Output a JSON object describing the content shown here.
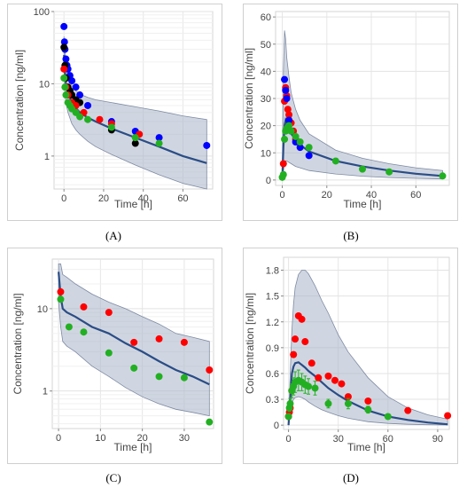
{
  "panels": [
    {
      "id": "A",
      "tag": "(A)"
    },
    {
      "id": "B",
      "tag": "(B)"
    },
    {
      "id": "C",
      "tag": "(C)"
    },
    {
      "id": "D",
      "tag": "(D)"
    }
  ],
  "chart_data": [
    {
      "panel": "(A)",
      "type": "scatter",
      "yscale": "log",
      "xlabel": "Time [h]",
      "ylabel": "Concentration [ng/ml]",
      "xlim": [
        -5,
        75
      ],
      "ylim": [
        0.35,
        100
      ],
      "xticks": [
        0,
        20,
        40,
        60
      ],
      "yticks": [
        1,
        10,
        100
      ],
      "grid": true,
      "legend": "none",
      "prediction": {
        "x": [
          0,
          0.5,
          1,
          2,
          4,
          6,
          8,
          12,
          16,
          24,
          36,
          48,
          60,
          72
        ],
        "y": [
          25,
          15,
          10,
          7.5,
          5.5,
          4.6,
          4.0,
          3.4,
          3.0,
          2.4,
          1.8,
          1.35,
          1.0,
          0.8
        ],
        "lower": [
          14,
          8,
          5.5,
          4.0,
          2.8,
          2.3,
          2.0,
          1.6,
          1.35,
          1.05,
          0.75,
          0.55,
          0.42,
          0.35
        ],
        "upper": [
          45,
          28,
          18,
          12.5,
          9.5,
          8.0,
          7.2,
          6.5,
          6.0,
          5.5,
          4.8,
          4.2,
          3.6,
          3.2
        ]
      },
      "series": [
        {
          "color": "#0000ff",
          "x": [
            0,
            0.25,
            0.5,
            1,
            1.5,
            2,
            3,
            4,
            6,
            8,
            12,
            24,
            36,
            48,
            72
          ],
          "y": [
            62,
            38,
            30,
            22,
            18,
            16,
            13,
            11,
            9,
            7,
            5,
            3,
            2.2,
            1.8,
            1.4
          ]
        },
        {
          "color": "#000000",
          "x": [
            0,
            0.5,
            1,
            2,
            3,
            4,
            6,
            8,
            24,
            36
          ],
          "y": [
            32,
            18,
            12,
            9,
            8,
            7,
            6,
            5.5,
            2.3,
            1.5
          ]
        },
        {
          "color": "#ff0000",
          "x": [
            0,
            1,
            2,
            4,
            6,
            10,
            18,
            24,
            38
          ],
          "y": [
            16,
            9,
            7,
            5.5,
            5,
            4,
            3.2,
            2.8,
            2.0
          ]
        },
        {
          "color": "#22b022",
          "x": [
            0,
            0.5,
            1,
            2,
            3,
            4,
            6,
            8,
            12,
            24,
            36,
            48
          ],
          "y": [
            12,
            9,
            7,
            5.5,
            5,
            4.5,
            4,
            3.5,
            3.2,
            2.5,
            1.8,
            1.5
          ]
        }
      ]
    },
    {
      "panel": "(B)",
      "type": "scatter",
      "xlabel": "Time [h]",
      "ylabel": "Concentration [ng/ml]",
      "xlim": [
        -3,
        75
      ],
      "ylim": [
        -2,
        62
      ],
      "xticks": [
        0,
        20,
        40,
        60
      ],
      "yticks": [
        0,
        10,
        20,
        30,
        40,
        50,
        60
      ],
      "grid": true,
      "legend": "none",
      "prediction": {
        "x": [
          0,
          0.5,
          1,
          1.5,
          2,
          3,
          4,
          6,
          8,
          12,
          24,
          36,
          48,
          60,
          72
        ],
        "y": [
          0,
          12,
          20,
          22,
          21,
          19,
          17,
          15,
          13,
          10.5,
          7,
          5,
          3.5,
          2.3,
          1.5
        ],
        "lower": [
          0,
          3,
          6,
          7,
          7,
          6.5,
          6,
          5,
          4.5,
          3.5,
          2.2,
          1.4,
          0.9,
          0.6,
          0.4
        ],
        "upper": [
          0,
          40,
          55,
          52,
          45,
          38,
          32,
          26,
          22,
          17,
          11,
          8,
          6,
          4.5,
          3.5
        ]
      },
      "series": [
        {
          "color": "#ff0000",
          "x": [
            0.5,
            1,
            1.5,
            2,
            2.5,
            3,
            4,
            5,
            6
          ],
          "y": [
            6,
            29,
            34,
            31,
            26,
            24,
            21,
            18,
            15
          ]
        },
        {
          "color": "#0000ff",
          "x": [
            1,
            1.5,
            2,
            3,
            4,
            6,
            8,
            12
          ],
          "y": [
            37,
            33,
            30,
            22,
            18,
            14,
            12,
            9
          ]
        },
        {
          "color": "#22b022",
          "x": [
            0,
            0.5,
            1,
            1.5,
            2,
            3,
            4,
            6,
            8,
            12,
            24,
            36,
            48,
            72
          ],
          "y": [
            1,
            2,
            15,
            18,
            19,
            20,
            18,
            16,
            14,
            12,
            7,
            4,
            3,
            1.5
          ]
        }
      ]
    },
    {
      "panel": "(C)",
      "type": "scatter",
      "yscale": "log",
      "xlabel": "Time [h]",
      "ylabel": "Concentration [ng/ml]",
      "xlim": [
        -1.5,
        37
      ],
      "ylim": [
        0.35,
        40
      ],
      "xticks": [
        0,
        10,
        20,
        30
      ],
      "yticks": [
        1,
        10
      ],
      "grid": true,
      "legend": "none",
      "prediction": {
        "x": [
          0,
          0.5,
          1,
          2,
          4,
          8,
          12,
          16,
          20,
          24,
          28,
          32,
          36
        ],
        "y": [
          28,
          14,
          10,
          9,
          8,
          6,
          5,
          3.8,
          3,
          2.3,
          1.8,
          1.5,
          1.2
        ],
        "lower": [
          12,
          6,
          4,
          3.5,
          3,
          2,
          1.5,
          1.1,
          0.85,
          0.7,
          0.6,
          0.55,
          0.5
        ],
        "upper": [
          35,
          35,
          26,
          24,
          20,
          15,
          12,
          10,
          8,
          6.5,
          5,
          4.5,
          4
        ]
      },
      "series": [
        {
          "color": "#ff0000",
          "x": [
            0.5,
            6,
            12,
            18,
            24,
            30,
            36
          ],
          "y": [
            16,
            10.5,
            9,
            3.9,
            4.3,
            3.9,
            1.8
          ]
        },
        {
          "color": "#22b022",
          "x": [
            0.5,
            2.5,
            6,
            12,
            18,
            24,
            30,
            36
          ],
          "y": [
            13,
            6,
            5.2,
            2.9,
            1.9,
            1.5,
            1.45,
            0.42
          ]
        }
      ]
    },
    {
      "panel": "(D)",
      "type": "scatter",
      "xlabel": "Time [h]",
      "ylabel": "Concentration [ng/ml]",
      "xlim": [
        -3,
        97
      ],
      "ylim": [
        -0.05,
        1.95
      ],
      "xticks": [
        0,
        30,
        60,
        90
      ],
      "yticks": [
        0,
        0.3,
        0.6,
        0.9,
        1.2,
        1.5,
        1.8
      ],
      "grid": true,
      "legend": "none",
      "prediction": {
        "x": [
          0,
          1,
          2,
          3,
          4,
          6,
          8,
          10,
          12,
          16,
          20,
          24,
          30,
          36,
          48,
          60,
          72,
          84,
          96
        ],
        "y": [
          0,
          0.3,
          0.6,
          0.68,
          0.72,
          0.73,
          0.7,
          0.67,
          0.63,
          0.57,
          0.5,
          0.43,
          0.35,
          0.28,
          0.17,
          0.1,
          0.06,
          0.03,
          0.01
        ],
        "lower": [
          0,
          0.1,
          0.25,
          0.3,
          0.32,
          0.33,
          0.32,
          0.3,
          0.27,
          0.22,
          0.18,
          0.15,
          0.11,
          0.08,
          0.04,
          0.02,
          0.01,
          0.005,
          0.002
        ],
        "upper": [
          0,
          0.6,
          1.1,
          1.4,
          1.6,
          1.75,
          1.8,
          1.8,
          1.76,
          1.62,
          1.45,
          1.3,
          1.05,
          0.85,
          0.55,
          0.33,
          0.2,
          0.12,
          0.07
        ]
      },
      "series": [
        {
          "color": "#ff0000",
          "x": [
            0,
            0.5,
            1,
            2,
            3,
            4,
            6,
            8,
            10,
            14,
            18,
            24,
            28,
            32,
            36,
            48,
            72,
            96
          ],
          "y": [
            0.1,
            0.15,
            0.2,
            0.4,
            0.82,
            1.0,
            1.27,
            1.23,
            0.97,
            0.72,
            0.55,
            0.57,
            0.52,
            0.48,
            0.33,
            0.28,
            0.17,
            0.11
          ]
        },
        {
          "color": "#22b022",
          "x": [
            0,
            0.5,
            1,
            2,
            3,
            4,
            6,
            8,
            10,
            12,
            16,
            24,
            36,
            48,
            60
          ],
          "y": [
            0.1,
            0.2,
            0.25,
            0.4,
            0.45,
            0.5,
            0.52,
            0.5,
            0.47,
            0.45,
            0.43,
            0.25,
            0.25,
            0.18,
            0.1
          ],
          "err": [
            0.02,
            0.04,
            0.06,
            0.08,
            0.1,
            0.12,
            0.12,
            0.1,
            0.1,
            0.09,
            0.08,
            0.05,
            0.06,
            0.04,
            0.03
          ]
        }
      ]
    }
  ]
}
